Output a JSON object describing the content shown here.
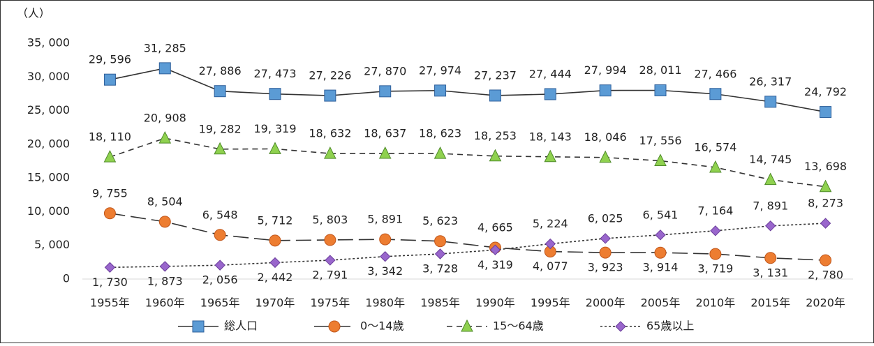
{
  "chart_data": {
    "type": "line",
    "y_axis_label": "（人）",
    "categories": [
      "1955年",
      "1960年",
      "1965年",
      "1970年",
      "1975年",
      "1980年",
      "1985年",
      "1990年",
      "1995年",
      "2000年",
      "2005年",
      "2010年",
      "2015年",
      "2020年"
    ],
    "series": [
      {
        "name": "総人口",
        "color": "#5b9bd5",
        "values": [
          29596,
          31285,
          27886,
          27473,
          27226,
          27870,
          27974,
          27237,
          27444,
          27994,
          28011,
          27466,
          26317,
          24792
        ],
        "value_labels": [
          "29, 596",
          "31, 285",
          "27, 886",
          "27, 473",
          "27, 226",
          "27, 870",
          "27, 974",
          "27, 237",
          "27, 444",
          "27, 994",
          "28, 011",
          "27, 466",
          "26, 317",
          "24, 792"
        ]
      },
      {
        "name": "0〜14歳",
        "color": "#ed7d31",
        "values": [
          9755,
          8504,
          6548,
          5712,
          5803,
          5891,
          5623,
          4665,
          4077,
          3923,
          3914,
          3719,
          3131,
          2780
        ],
        "value_labels": [
          "9, 755",
          "8, 504",
          "6, 548",
          "5, 712",
          "5, 803",
          "5, 891",
          "5, 623",
          "4, 665",
          "4, 077",
          "3, 923",
          "3, 914",
          "3, 719",
          "3, 131",
          "2, 780"
        ]
      },
      {
        "name": "15〜64歳",
        "color": "#8fd14f",
        "values": [
          18110,
          20908,
          19282,
          19319,
          18632,
          18637,
          18623,
          18253,
          18143,
          18046,
          17556,
          16574,
          14745,
          13698
        ],
        "value_labels": [
          "18, 110",
          "20, 908",
          "19, 282",
          "19, 319",
          "18, 632",
          "18, 637",
          "18, 623",
          "18, 253",
          "18, 143",
          "18, 046",
          "17, 556",
          "16, 574",
          "14, 745",
          "13, 698"
        ]
      },
      {
        "name": "65歳以上",
        "color": "#9966cc",
        "values": [
          1730,
          1873,
          2056,
          2442,
          2791,
          3342,
          3728,
          4319,
          5224,
          6025,
          6541,
          7164,
          7891,
          8273
        ],
        "value_labels": [
          "1, 730",
          "1, 873",
          "2, 056",
          "2, 442",
          "2, 791",
          "3, 342",
          "3, 728",
          "4, 319",
          "5, 224",
          "6, 025",
          "6, 541",
          "7, 164",
          "7, 891",
          "8, 273"
        ]
      }
    ],
    "ylim": [
      0,
      35000
    ],
    "yticks": [
      {
        "value": 0,
        "label": "0"
      },
      {
        "value": 5000,
        "label": "5, 000"
      },
      {
        "value": 10000,
        "label": "10, 000"
      },
      {
        "value": 15000,
        "label": "15, 000"
      },
      {
        "value": 20000,
        "label": "20, 000"
      },
      {
        "value": 25000,
        "label": "25, 000"
      },
      {
        "value": 30000,
        "label": "30, 000"
      },
      {
        "value": 35000,
        "label": "35, 000"
      }
    ],
    "grid": false,
    "legend": "bottom"
  }
}
